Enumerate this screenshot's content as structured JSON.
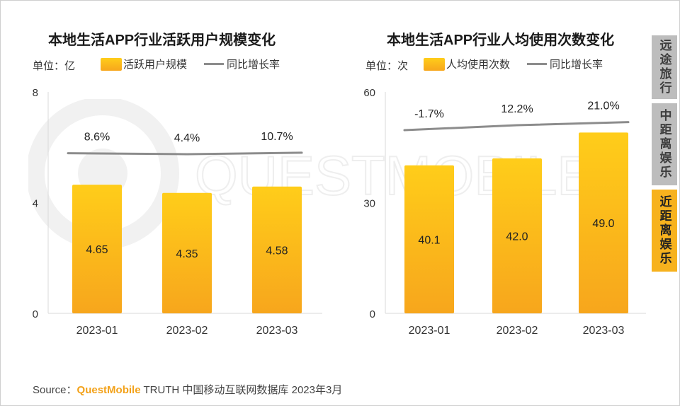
{
  "charts": [
    {
      "title": "本地生活APP行业活跃用户规模变化",
      "unit_label": "单位：亿",
      "legend": {
        "bar": "活跃用户规模",
        "line": "同比增长率"
      }
    },
    {
      "title": "本地生活APP行业人均使用次数变化",
      "unit_label": "单位：次",
      "legend": {
        "bar": "人均使用次数",
        "line": "同比增长率"
      }
    }
  ],
  "chart_data": [
    {
      "type": "bar",
      "title": "本地生活APP行业活跃用户规模变化",
      "categories": [
        "2023-01",
        "2023-02",
        "2023-03"
      ],
      "series": [
        {
          "name": "活跃用户规模",
          "values": [
            4.65,
            4.35,
            4.58
          ]
        },
        {
          "name": "同比增长率",
          "type": "line",
          "values": [
            8.6,
            4.4,
            10.7
          ],
          "labels": [
            "8.6%",
            "4.4%",
            "10.7%"
          ]
        }
      ],
      "yticks": [
        "0",
        "4",
        "8"
      ],
      "ylim": [
        0,
        8
      ],
      "value_labels": [
        "4.65",
        "4.35",
        "4.58"
      ],
      "colors": {
        "bar_top": "#ffcd1a",
        "bar_bottom": "#f7a61c",
        "line": "#8c8c8c"
      }
    },
    {
      "type": "bar",
      "title": "本地生活APP行业人均使用次数变化",
      "categories": [
        "2023-01",
        "2023-02",
        "2023-03"
      ],
      "series": [
        {
          "name": "人均使用次数",
          "values": [
            40.1,
            42.0,
            49.0
          ]
        },
        {
          "name": "同比增长率",
          "type": "line",
          "values": [
            -1.7,
            12.2,
            21.0
          ],
          "labels": [
            "-1.7%",
            "12.2%",
            "21.0%"
          ]
        }
      ],
      "yticks": [
        "0",
        "30",
        "60"
      ],
      "ylim": [
        0,
        60
      ],
      "value_labels": [
        "40.1",
        "42.0",
        "49.0"
      ],
      "colors": {
        "bar_top": "#ffcd1a",
        "bar_bottom": "#f7a61c",
        "line": "#8c8c8c"
      }
    }
  ],
  "side_tabs": [
    {
      "label": "远途旅行",
      "active": false
    },
    {
      "label": "中距离娱乐",
      "active": false
    },
    {
      "label": "近距离娱乐",
      "active": true
    }
  ],
  "source": {
    "prefix": "Source：",
    "brand": "QuestMobile",
    "text": " TRUTH 中国移动互联网数据库 2023年3月"
  },
  "watermark": "QUESTMOBILE"
}
